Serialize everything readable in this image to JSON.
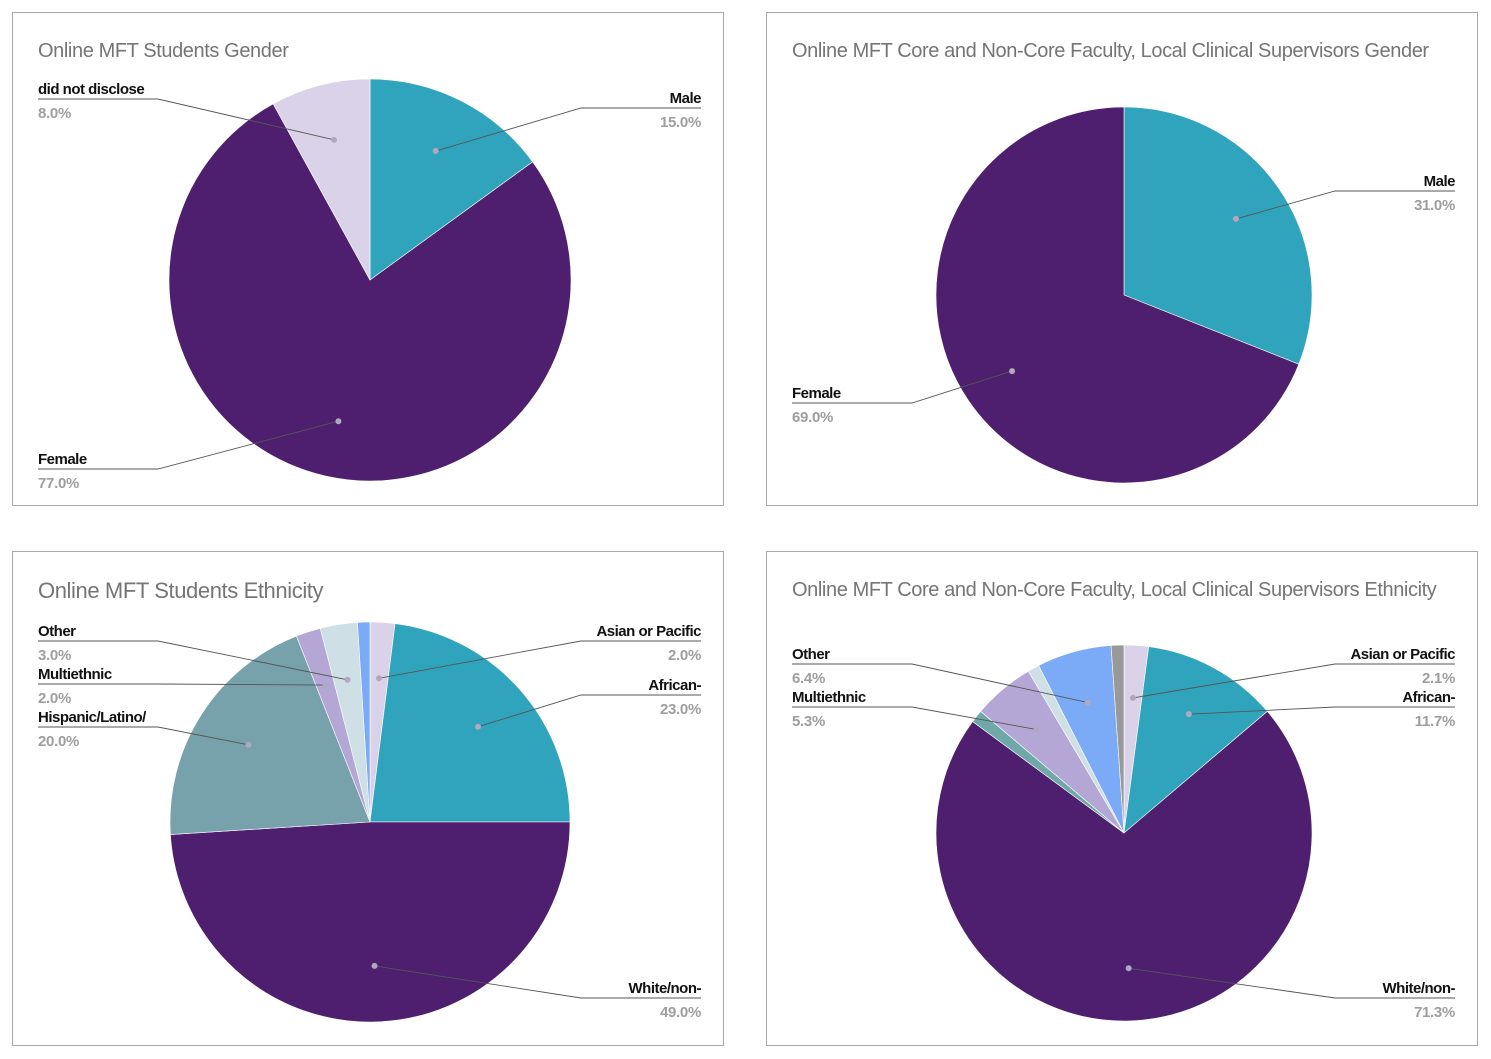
{
  "chart_data": [
    {
      "type": "pie",
      "title": "Online MFT Students Gender",
      "start_angle_deg": 0,
      "direction": "clockwise",
      "slices": [
        {
          "label": "Male",
          "value": 15.0,
          "value_text": "15.0%",
          "color": "#31a4bd",
          "show_label": true
        },
        {
          "label": "Female",
          "value": 77.0,
          "value_text": "77.0%",
          "color": "#4e1f6f",
          "show_label": true
        },
        {
          "label": "did not disclose",
          "value": 8.0,
          "value_text": "8.0%",
          "color": "#d9d2e9",
          "show_label": true
        }
      ]
    },
    {
      "type": "pie",
      "title": "Online MFT Core and Non-Core Faculty, Local Clinical Supervisors Gender",
      "start_angle_deg": 0,
      "direction": "clockwise",
      "slices": [
        {
          "label": "Male",
          "value": 31.0,
          "value_text": "31.0%",
          "color": "#31a4bd",
          "show_label": true
        },
        {
          "label": "Female",
          "value": 69.0,
          "value_text": "69.0%",
          "color": "#4e1f6f",
          "show_label": true
        }
      ]
    },
    {
      "type": "pie",
      "title": "Online MFT Students Ethnicity",
      "start_angle_deg": 0,
      "direction": "clockwise",
      "slices": [
        {
          "label": "Asian or Pacific",
          "value": 2.0,
          "value_text": "2.0%",
          "color": "#d9d2e9",
          "show_label": true
        },
        {
          "label": "African-",
          "value": 23.0,
          "value_text": "23.0%",
          "color": "#31a4bd",
          "show_label": true
        },
        {
          "label": "White/non-",
          "value": 49.0,
          "value_text": "49.0%",
          "color": "#4e1f6f",
          "show_label": true
        },
        {
          "label": "Hispanic/Latino/",
          "value": 20.0,
          "value_text": "20.0%",
          "color": "#78a2ab",
          "show_label": true
        },
        {
          "label": "Multiethnic",
          "value": 2.0,
          "value_text": "2.0%",
          "color": "#b4a7d6",
          "show_label": true
        },
        {
          "label": "Other",
          "value": 3.0,
          "value_text": "3.0%",
          "color": "#cfdfe6",
          "show_label": true
        },
        {
          "label": "",
          "value": 1.0,
          "value_text": "",
          "color": "#7baaf7",
          "show_label": false
        }
      ]
    },
    {
      "type": "pie",
      "title": "Online MFT Core and Non-Core Faculty, Local Clinical Supervisors Ethnicity",
      "start_angle_deg": 0,
      "direction": "clockwise",
      "slices": [
        {
          "label": "Asian or Pacific",
          "value": 2.1,
          "value_text": "2.1%",
          "color": "#d9d2e9",
          "show_label": true
        },
        {
          "label": "African-",
          "value": 11.7,
          "value_text": "11.7%",
          "color": "#31a4bd",
          "show_label": true
        },
        {
          "label": "White/non-",
          "value": 71.3,
          "value_text": "71.3%",
          "color": "#4e1f6f",
          "show_label": true
        },
        {
          "label": "",
          "value": 1.1,
          "value_text": "",
          "color": "#6fa8a8",
          "show_label": false
        },
        {
          "label": "Multiethnic",
          "value": 5.3,
          "value_text": "5.3%",
          "color": "#b4a7d6",
          "show_label": true
        },
        {
          "label": "",
          "value": 1.0,
          "value_text": "",
          "color": "#cfdfe6",
          "show_label": false
        },
        {
          "label": "Other",
          "value": 6.4,
          "value_text": "6.4%",
          "color": "#7baaf7",
          "show_label": true
        },
        {
          "label": "",
          "value": 1.1,
          "value_text": "",
          "color": "#999999",
          "show_label": false
        }
      ]
    }
  ],
  "style": {
    "title_color": "#757575",
    "label_color": "#111111",
    "value_color": "#9e9e9e",
    "leader_color": "#555555",
    "marker_color": "#b0a8c0"
  }
}
